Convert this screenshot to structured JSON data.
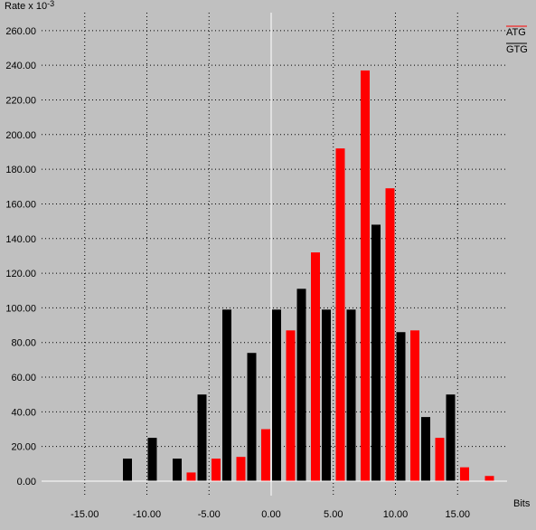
{
  "chart_data": {
    "type": "bar",
    "ylabel_main": "Rate x 10",
    "ylabel_exp": "-3",
    "xlabel": "Bits",
    "xlim": [
      -18.5,
      18.5
    ],
    "ylim": [
      0,
      265
    ],
    "xticks": [
      -15,
      -10,
      -5,
      0,
      5,
      10,
      15
    ],
    "xtick_labels": [
      "-15.00",
      "-10.00",
      "-5.00",
      "0.00",
      "5.00",
      "10.00",
      "15.00"
    ],
    "yticks": [
      0,
      20,
      40,
      60,
      80,
      100,
      120,
      140,
      160,
      180,
      200,
      220,
      240,
      260
    ],
    "ytick_labels": [
      "0.00",
      "20.00",
      "40.00",
      "60.00",
      "80.00",
      "100.00",
      "120.00",
      "140.00",
      "160.00",
      "180.00",
      "200.00",
      "220.00",
      "240.00",
      "260.00"
    ],
    "grid": "dotted",
    "zero_line": true,
    "legend_position": "top-right",
    "series": [
      {
        "name": "ATG",
        "color": "#ff0000",
        "x": [
          -12,
          -10,
          -8,
          -6,
          -4,
          -2,
          0,
          2,
          4,
          6,
          8,
          10,
          12,
          14,
          16,
          18
        ],
        "values": [
          0,
          0,
          0,
          5,
          13,
          14,
          30,
          87,
          132,
          192,
          237,
          169,
          87,
          25,
          8,
          3
        ]
      },
      {
        "name": "GTG",
        "color": "#000000",
        "x": [
          -12,
          -10,
          -8,
          -6,
          -4,
          -2,
          0,
          2,
          4,
          6,
          8,
          10,
          12,
          14,
          16,
          18
        ],
        "values": [
          13,
          25,
          13,
          50,
          99,
          74,
          99,
          111,
          99,
          99,
          148,
          86,
          37,
          50,
          0,
          0
        ]
      }
    ]
  }
}
